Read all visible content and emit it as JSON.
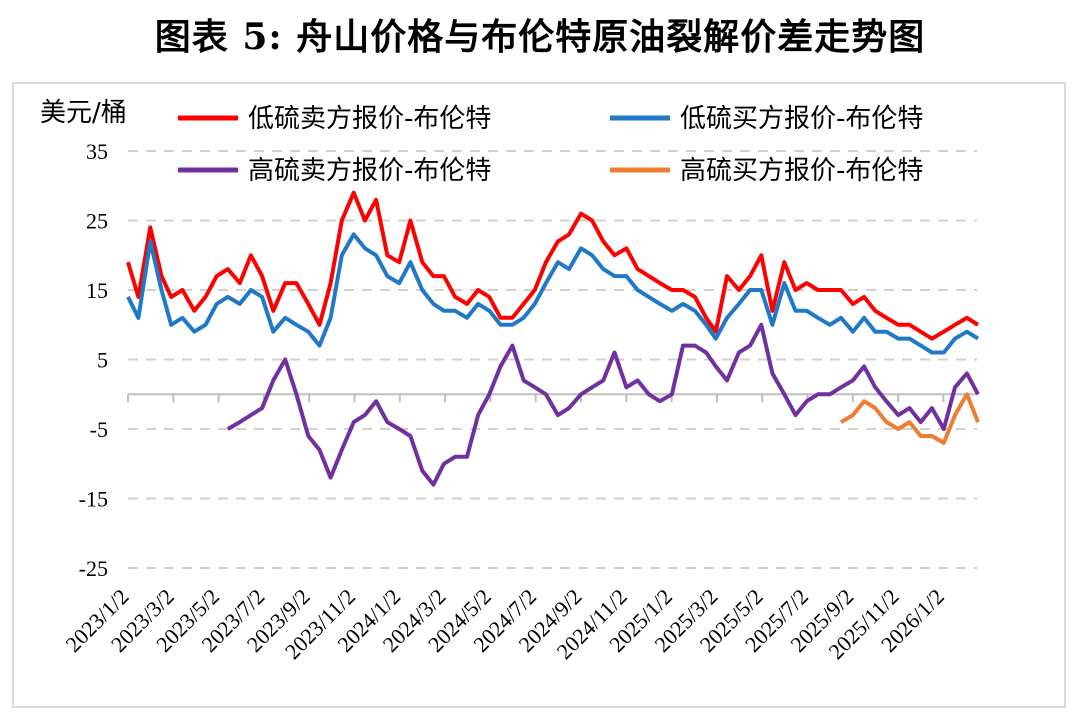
{
  "title": "图表 5:  舟山价格与布伦特原油裂解价差走势图",
  "chart_data": {
    "type": "line",
    "title": "图表 5:  舟山价格与布伦特原油裂解价差走势图",
    "ylabel": "美元/桶",
    "xlabel": "",
    "ylim": [
      -25,
      35
    ],
    "yticks": [
      35,
      25,
      15,
      5,
      -5,
      -15,
      -25
    ],
    "grid": true,
    "legend": "top",
    "xtick_labels": [
      "2023/1/2",
      "2023/3/2",
      "2023/5/2",
      "2023/7/2",
      "2023/9/2",
      "2023/11/2",
      "2024/1/2",
      "2024/3/2",
      "2024/5/2",
      "2024/7/2",
      "2024/9/2",
      "2024/11/2",
      "2025/1/2",
      "2025/3/2",
      "2025/5/2",
      "2025/7/2",
      "2025/9/2",
      "2025/11/2",
      "2026/1/2"
    ],
    "x": [
      "2023-01-02",
      "2023-01-16",
      "2023-02-01",
      "2023-02-16",
      "2023-03-01",
      "2023-03-16",
      "2023-04-01",
      "2023-04-16",
      "2023-05-01",
      "2023-05-16",
      "2023-06-01",
      "2023-06-16",
      "2023-07-01",
      "2023-07-16",
      "2023-08-01",
      "2023-08-16",
      "2023-09-01",
      "2023-09-16",
      "2023-10-01",
      "2023-10-16",
      "2023-11-01",
      "2023-11-16",
      "2023-12-01",
      "2023-12-16",
      "2024-01-01",
      "2024-01-16",
      "2024-02-01",
      "2024-02-16",
      "2024-03-01",
      "2024-03-16",
      "2024-04-01",
      "2024-04-16",
      "2024-05-01",
      "2024-05-16",
      "2024-06-01",
      "2024-06-16",
      "2024-07-01",
      "2024-07-16",
      "2024-08-01",
      "2024-08-16",
      "2024-09-01",
      "2024-09-16",
      "2024-10-01",
      "2024-10-16",
      "2024-11-01",
      "2024-11-16",
      "2024-12-01",
      "2024-12-16",
      "2025-01-01",
      "2025-01-16",
      "2025-02-01",
      "2025-02-16",
      "2025-03-01",
      "2025-03-16",
      "2025-04-01",
      "2025-04-16",
      "2025-05-01",
      "2025-05-16",
      "2025-06-01",
      "2025-06-16",
      "2025-07-01",
      "2025-07-16",
      "2025-08-01",
      "2025-08-16",
      "2025-09-01",
      "2025-09-16",
      "2025-10-01",
      "2025-10-16",
      "2025-11-01",
      "2025-11-16",
      "2025-12-01",
      "2025-12-16",
      "2026-01-01",
      "2026-01-16",
      "2026-02-01",
      "2026-02-16"
    ],
    "series": [
      {
        "name": "低硫卖方报价-布伦特",
        "color": "#ff0000",
        "values": [
          19,
          14,
          24,
          17,
          14,
          15,
          12,
          14,
          17,
          18,
          16,
          20,
          17,
          12,
          16,
          16,
          13,
          10,
          16,
          25,
          29,
          25,
          28,
          20,
          19,
          25,
          19,
          17,
          17,
          14,
          13,
          15,
          14,
          11,
          11,
          13,
          15,
          19,
          22,
          23,
          26,
          25,
          22,
          20,
          21,
          18,
          17,
          16,
          15,
          15,
          14,
          11,
          9,
          17,
          15,
          17,
          20,
          12,
          19,
          15,
          16,
          15,
          15,
          15,
          13,
          14,
          12,
          11,
          10,
          10,
          9,
          8,
          9,
          10,
          11,
          10
        ]
      },
      {
        "name": "低硫买方报价-布伦特",
        "color": "#1f78c8",
        "values": [
          14,
          11,
          22,
          15,
          10,
          11,
          9,
          10,
          13,
          14,
          13,
          15,
          14,
          9,
          11,
          10,
          9,
          7,
          11,
          20,
          23,
          21,
          20,
          17,
          16,
          19,
          15,
          13,
          12,
          12,
          11,
          13,
          12,
          10,
          10,
          11,
          13,
          16,
          19,
          18,
          21,
          20,
          18,
          17,
          17,
          15,
          14,
          13,
          12,
          13,
          12,
          10,
          8,
          11,
          13,
          15,
          15,
          10,
          16,
          12,
          12,
          11,
          10,
          11,
          9,
          11,
          9,
          9,
          8,
          8,
          7,
          6,
          6,
          8,
          9,
          8
        ]
      },
      {
        "name": "高硫卖方报价-布伦特",
        "color": "#7030a0",
        "values": [
          null,
          null,
          null,
          null,
          null,
          null,
          null,
          null,
          null,
          -5,
          -4,
          -3,
          -2,
          2,
          5,
          0,
          -6,
          -8,
          -12,
          -8,
          -4,
          -3,
          -1,
          -4,
          -5,
          -6,
          -11,
          -13,
          -10,
          -9,
          -9,
          -3,
          0,
          4,
          7,
          2,
          1,
          0,
          -3,
          -2,
          0,
          1,
          2,
          6,
          1,
          2,
          0,
          -1,
          0,
          7,
          7,
          6,
          4,
          2,
          6,
          7,
          10,
          3,
          0,
          -3,
          -1,
          0,
          0,
          1,
          2,
          4,
          1,
          -1,
          -3,
          -2,
          -4,
          -2,
          -5,
          1,
          3,
          0
        ]
      },
      {
        "name": "高硫买方报价-布伦特",
        "color": "#ed7d31",
        "values": [
          null,
          null,
          null,
          null,
          null,
          null,
          null,
          null,
          null,
          null,
          null,
          null,
          null,
          null,
          null,
          null,
          null,
          null,
          null,
          null,
          null,
          null,
          null,
          null,
          null,
          null,
          null,
          null,
          null,
          null,
          null,
          null,
          null,
          null,
          null,
          null,
          null,
          null,
          null,
          null,
          null,
          null,
          null,
          null,
          null,
          null,
          null,
          null,
          null,
          null,
          null,
          null,
          null,
          null,
          null,
          null,
          null,
          null,
          null,
          null,
          null,
          null,
          null,
          -4,
          -3,
          -1,
          -2,
          -4,
          -5,
          -4,
          -6,
          -6,
          -7,
          -3,
          0,
          -4
        ]
      }
    ]
  }
}
